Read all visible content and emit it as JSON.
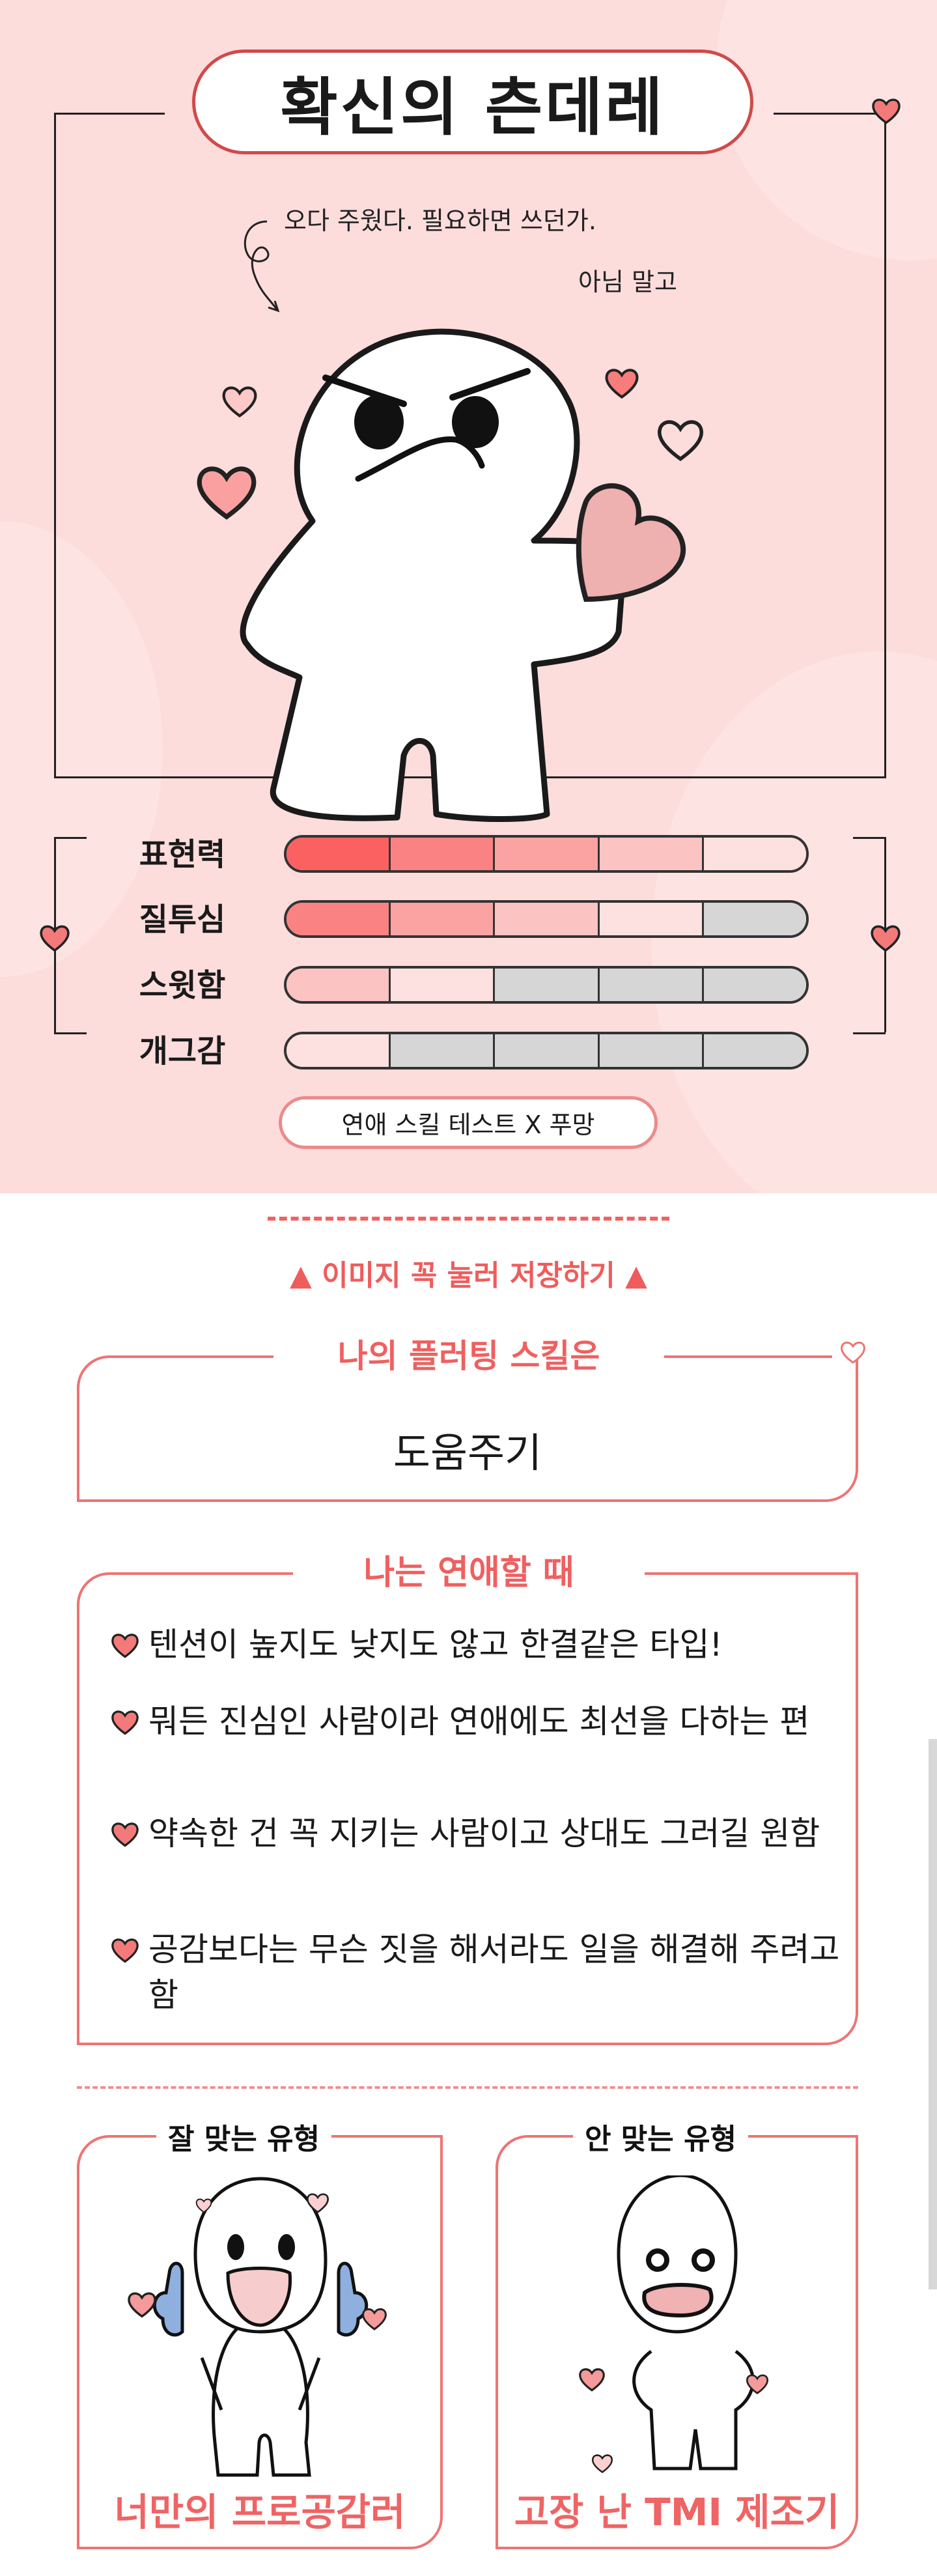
{
  "header": {
    "title": "확신의 츤데레"
  },
  "speech": {
    "line1": "오다 주웠다. 필요하면 쓰던가.",
    "line2": "아님 말고"
  },
  "colors": {
    "background": "#fddcdc",
    "accent": "#ef6464",
    "pill_border": "#cf4a4a",
    "empty_segment": "#d6d6d6",
    "segment_shades": [
      "#fb6161",
      "#fb8282",
      "#fba3a3",
      "#fcc3c3",
      "#fde0e0"
    ]
  },
  "stats": [
    {
      "label": "표현력",
      "level": 5,
      "max": 5
    },
    {
      "label": "질투심",
      "level": 4,
      "max": 5
    },
    {
      "label": "스윗함",
      "level": 2,
      "max": 5
    },
    {
      "label": "개그감",
      "level": 1,
      "max": 5
    }
  ],
  "brand_button": "연애 스킬 테스트 X 푸망",
  "save_hint": "▲ 이미지 꼭 눌러 저장하기 ▲",
  "skill_box": {
    "title": "나의 플러팅 스킬은",
    "value": "도움주기"
  },
  "love_box": {
    "title": "나는 연애할 때",
    "items": [
      "텐션이 높지도 낮지도 않고 한결같은 타입!",
      "뭐든 진심인 사람이라 연애에도 최선을 다하는 편",
      "약속한 건 꼭 지키는 사람이고 상대도 그러길 원함",
      "공감보다는 무슨 짓을 해서라도 일을 해결해 주려고 함"
    ]
  },
  "match": {
    "good": {
      "title": "잘 맞는 유형",
      "name": "너만의 프로공감러"
    },
    "bad": {
      "title": "안 맞는 유형",
      "name": "고장 난 TMI 제조기"
    }
  },
  "icons": [
    "heart-icon",
    "thumbs-up-icon",
    "curl-arrow-icon"
  ]
}
